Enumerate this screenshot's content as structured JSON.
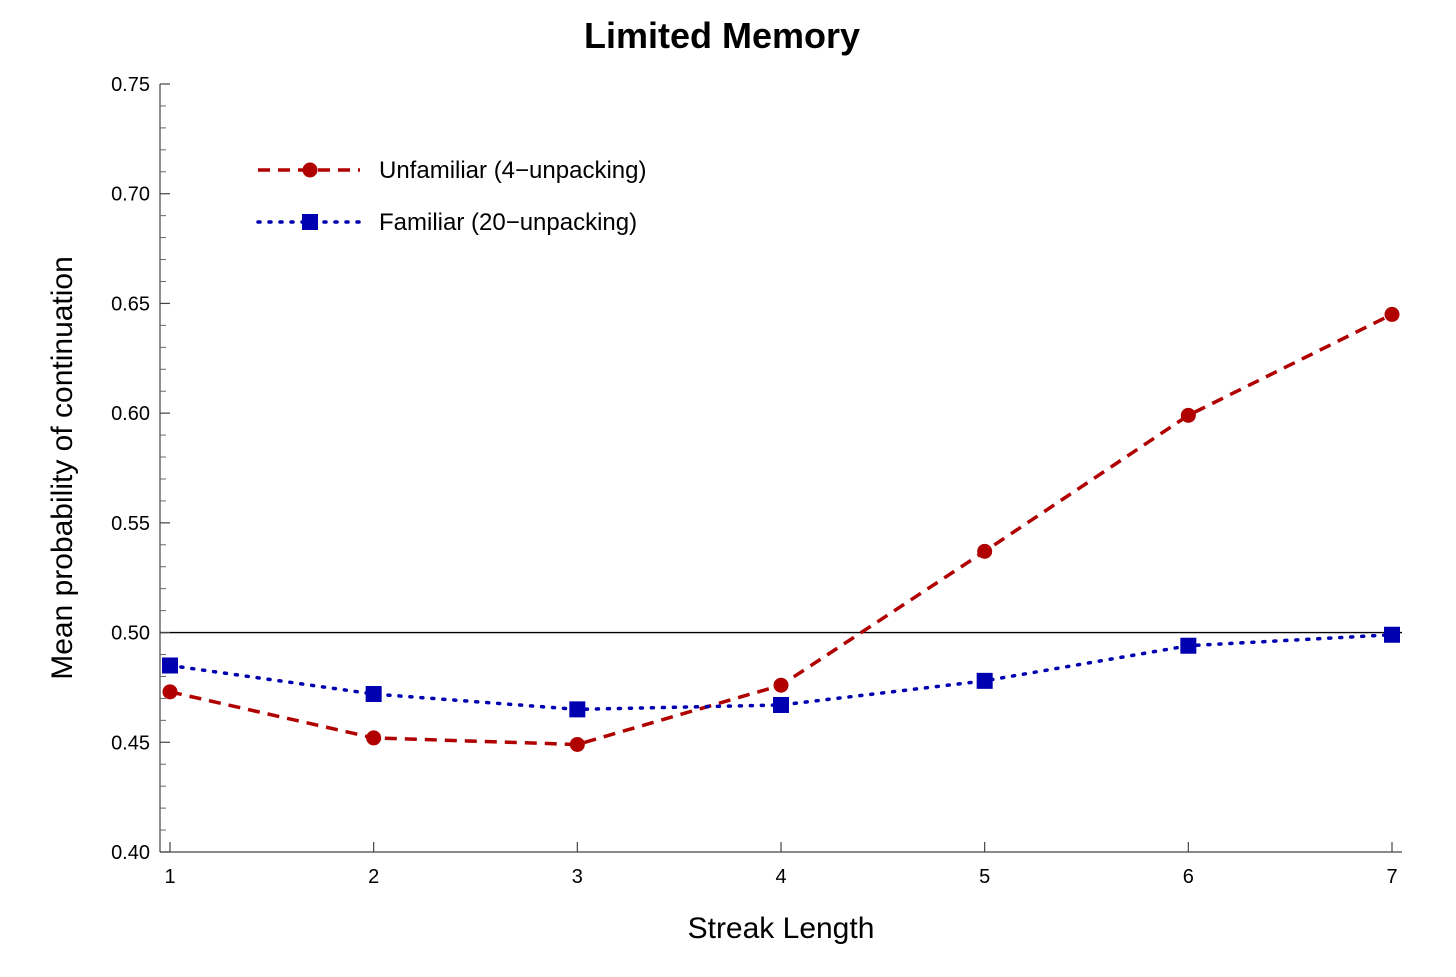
{
  "chart_data": {
    "type": "line",
    "title": "Limited Memory",
    "xlabel": "Streak Length",
    "ylabel": "Mean probability of continuation",
    "x": [
      1,
      2,
      3,
      4,
      5,
      6,
      7
    ],
    "xlim": [
      1,
      7
    ],
    "ylim": [
      0.4,
      0.75
    ],
    "xticks": [
      "1",
      "2",
      "3",
      "4",
      "5",
      "6",
      "7"
    ],
    "yticks": [
      "0.40",
      "0.45",
      "0.50",
      "0.55",
      "0.60",
      "0.65",
      "0.70",
      "0.75"
    ],
    "reference_line": 0.5,
    "grid": false,
    "legend_position": "top-left",
    "series": [
      {
        "name": "Unfamiliar (4−unpacking)",
        "values": [
          0.473,
          0.452,
          0.449,
          0.476,
          0.537,
          0.599,
          0.645
        ],
        "color": "#b00000",
        "line_style": "dashed",
        "marker": "circle"
      },
      {
        "name": "Familiar (20−unpacking)",
        "values": [
          0.485,
          0.472,
          0.465,
          0.467,
          0.478,
          0.494,
          0.499
        ],
        "color": "#0000b0",
        "line_style": "dotted",
        "marker": "square"
      }
    ]
  }
}
